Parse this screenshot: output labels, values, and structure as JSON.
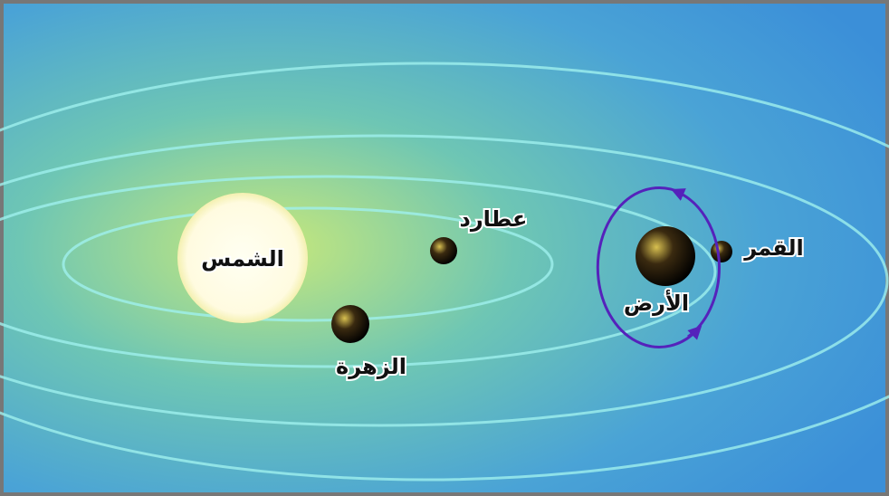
{
  "nodes": [
    {
      "label": "الشمس"
    },
    {
      "label": "عطارد"
    },
    {
      "label": "الزهرة"
    },
    {
      "label": "الأرض"
    },
    {
      "label": "القمر"
    }
  ]
}
